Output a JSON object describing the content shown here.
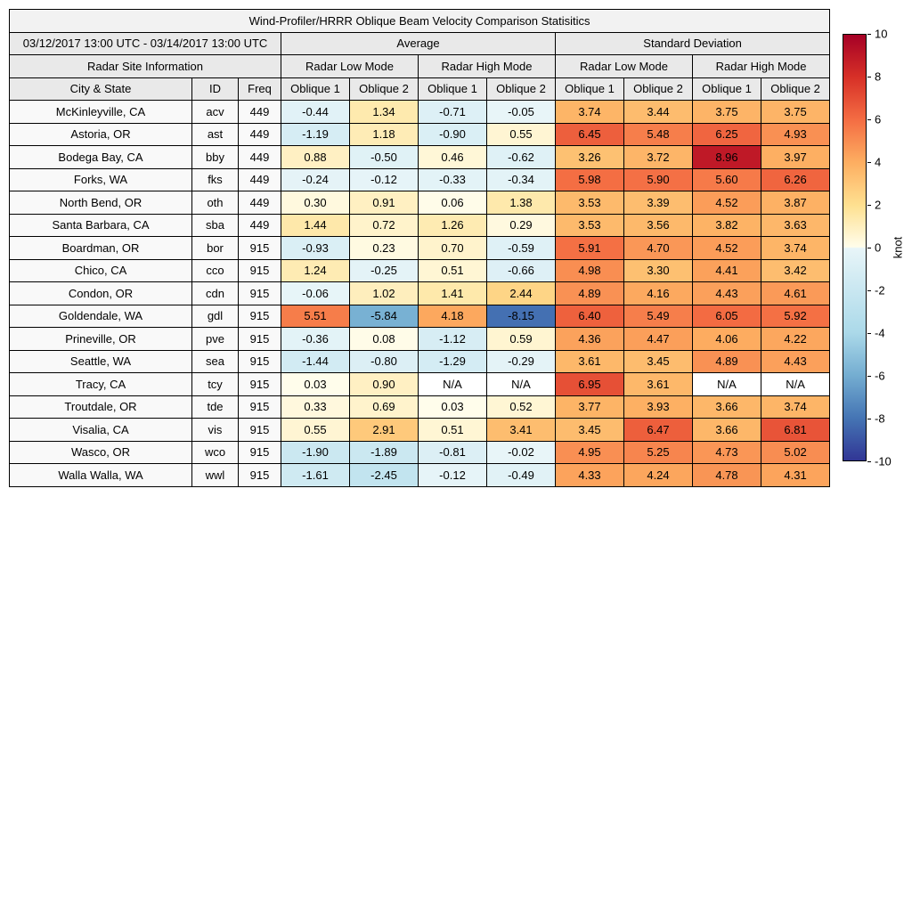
{
  "title": "Wind-Profiler/HRRR Oblique Beam Velocity Comparison Statisitics",
  "period": "03/12/2017 13:00 UTC - 03/14/2017 13:00 UTC",
  "group_headers": {
    "average": "Average",
    "std_dev": "Standard Deviation"
  },
  "subgroup_headers": {
    "site_info": "Radar Site Information",
    "low_mode": "Radar Low Mode",
    "high_mode": "Radar High Mode"
  },
  "column_headers": {
    "city": "City & State",
    "id": "ID",
    "freq": "Freq",
    "oblique1": "Oblique 1",
    "oblique2": "Oblique 2"
  },
  "na_label": "N/A",
  "colorbar": {
    "label": "knot",
    "min": -10,
    "max": 10,
    "ticks": [
      10,
      8,
      6,
      4,
      2,
      0,
      -2,
      -4,
      -6,
      -8,
      -10
    ]
  },
  "colormap": {
    "na_color": "#ffffff",
    "anchors": [
      {
        "v": -10,
        "c": "#313695"
      },
      {
        "v": -8,
        "c": "#4575b4"
      },
      {
        "v": -6,
        "c": "#74add1"
      },
      {
        "v": -4,
        "c": "#abd9e9"
      },
      {
        "v": -2,
        "c": "#c9e7f1"
      },
      {
        "v": -0.02,
        "c": "#e8f5f8"
      },
      {
        "v": 0.02,
        "c": "#fffdeb"
      },
      {
        "v": 2,
        "c": "#fee090"
      },
      {
        "v": 4,
        "c": "#fdae61"
      },
      {
        "v": 6,
        "c": "#f46d43"
      },
      {
        "v": 8,
        "c": "#d73027"
      },
      {
        "v": 10,
        "c": "#a50026"
      }
    ]
  },
  "chart_data": {
    "type": "heatmap",
    "title": "Wind-Profiler/HRRR Oblique Beam Velocity Comparison Statisitics",
    "value_unit": "knot",
    "value_range": [
      -10,
      10
    ],
    "columns": [
      "Average / Radar Low Mode / Oblique 1",
      "Average / Radar Low Mode / Oblique 2",
      "Average / Radar High Mode / Oblique 1",
      "Average / Radar High Mode / Oblique 2",
      "Standard Deviation / Radar Low Mode / Oblique 1",
      "Standard Deviation / Radar Low Mode / Oblique 2",
      "Standard Deviation / Radar High Mode / Oblique 1",
      "Standard Deviation / Radar High Mode / Oblique 2"
    ],
    "rows": [
      {
        "city": "McKinleyville, CA",
        "id": "acv",
        "freq": "449",
        "values": [
          "-0.44",
          "1.34",
          "-0.71",
          "-0.05",
          "3.74",
          "3.44",
          "3.75",
          "3.75"
        ]
      },
      {
        "city": "Astoria, OR",
        "id": "ast",
        "freq": "449",
        "values": [
          "-1.19",
          "1.18",
          "-0.90",
          "0.55",
          "6.45",
          "5.48",
          "6.25",
          "4.93"
        ]
      },
      {
        "city": "Bodega Bay, CA",
        "id": "bby",
        "freq": "449",
        "values": [
          "0.88",
          "-0.50",
          "0.46",
          "-0.62",
          "3.26",
          "3.72",
          "8.96",
          "3.97"
        ]
      },
      {
        "city": "Forks, WA",
        "id": "fks",
        "freq": "449",
        "values": [
          "-0.24",
          "-0.12",
          "-0.33",
          "-0.34",
          "5.98",
          "5.90",
          "5.60",
          "6.26"
        ]
      },
      {
        "city": "North Bend, OR",
        "id": "oth",
        "freq": "449",
        "values": [
          "0.30",
          "0.91",
          "0.06",
          "1.38",
          "3.53",
          "3.39",
          "4.52",
          "3.87"
        ]
      },
      {
        "city": "Santa Barbara, CA",
        "id": "sba",
        "freq": "449",
        "values": [
          "1.44",
          "0.72",
          "1.26",
          "0.29",
          "3.53",
          "3.56",
          "3.82",
          "3.63"
        ]
      },
      {
        "city": "Boardman, OR",
        "id": "bor",
        "freq": "915",
        "values": [
          "-0.93",
          "0.23",
          "0.70",
          "-0.59",
          "5.91",
          "4.70",
          "4.52",
          "3.74"
        ]
      },
      {
        "city": "Chico, CA",
        "id": "cco",
        "freq": "915",
        "values": [
          "1.24",
          "-0.25",
          "0.51",
          "-0.66",
          "4.98",
          "3.30",
          "4.41",
          "3.42"
        ]
      },
      {
        "city": "Condon, OR",
        "id": "cdn",
        "freq": "915",
        "values": [
          "-0.06",
          "1.02",
          "1.41",
          "2.44",
          "4.89",
          "4.16",
          "4.43",
          "4.61"
        ]
      },
      {
        "city": "Goldendale, WA",
        "id": "gdl",
        "freq": "915",
        "values": [
          "5.51",
          "-5.84",
          "4.18",
          "-8.15",
          "6.40",
          "5.49",
          "6.05",
          "5.92"
        ]
      },
      {
        "city": "Prineville, OR",
        "id": "pve",
        "freq": "915",
        "values": [
          "-0.36",
          "0.08",
          "-1.12",
          "0.59",
          "4.36",
          "4.47",
          "4.06",
          "4.22"
        ]
      },
      {
        "city": "Seattle, WA",
        "id": "sea",
        "freq": "915",
        "values": [
          "-1.44",
          "-0.80",
          "-1.29",
          "-0.29",
          "3.61",
          "3.45",
          "4.89",
          "4.43"
        ]
      },
      {
        "city": "Tracy, CA",
        "id": "tcy",
        "freq": "915",
        "values": [
          "0.03",
          "0.90",
          "N/A",
          "N/A",
          "6.95",
          "3.61",
          "N/A",
          "N/A"
        ]
      },
      {
        "city": "Troutdale, OR",
        "id": "tde",
        "freq": "915",
        "values": [
          "0.33",
          "0.69",
          "0.03",
          "0.52",
          "3.77",
          "3.93",
          "3.66",
          "3.74"
        ]
      },
      {
        "city": "Visalia, CA",
        "id": "vis",
        "freq": "915",
        "values": [
          "0.55",
          "2.91",
          "0.51",
          "3.41",
          "3.45",
          "6.47",
          "3.66",
          "6.81"
        ]
      },
      {
        "city": "Wasco, OR",
        "id": "wco",
        "freq": "915",
        "values": [
          "-1.90",
          "-1.89",
          "-0.81",
          "-0.02",
          "4.95",
          "5.25",
          "4.73",
          "5.02"
        ]
      },
      {
        "city": "Walla Walla, WA",
        "id": "wwl",
        "freq": "915",
        "values": [
          "-1.61",
          "-2.45",
          "-0.12",
          "-0.49",
          "4.33",
          "4.24",
          "4.78",
          "4.31"
        ]
      }
    ]
  }
}
